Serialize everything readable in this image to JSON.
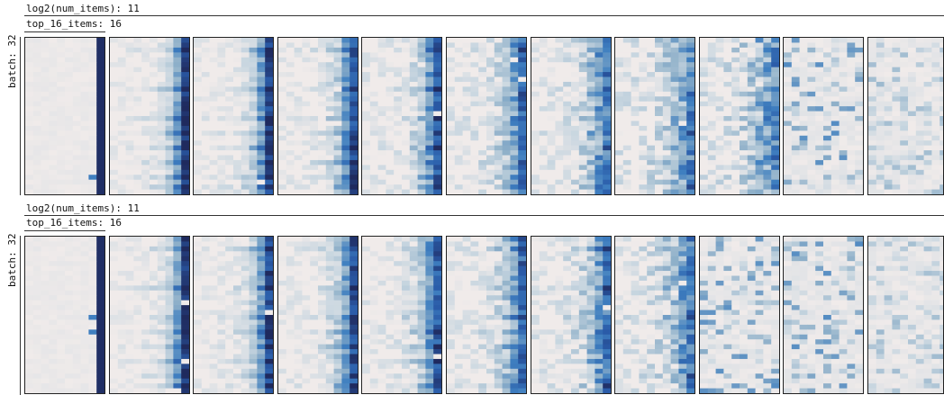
{
  "sections": [
    {
      "group_label": "log2(num_items): 11",
      "sub_label": "top_16_items: 16",
      "row_label": "batch: 32"
    },
    {
      "group_label": "log2(num_items): 11",
      "sub_label": "top_16_items: 16",
      "row_label": "batch: 32"
    }
  ],
  "chart_data": {
    "type": "heatmap",
    "rows_per_panel": 32,
    "cols_per_panel": 10,
    "panels_per_row": 11,
    "colormap": [
      "#f0ebea",
      "#c8d6e0",
      "#8fb0c9",
      "#3f7fc0",
      "#2a5ba8",
      "#1f2a5e"
    ],
    "legend": "none",
    "panel_diffusion_section_1": [
      0.0,
      0.12,
      0.22,
      0.32,
      0.42,
      0.52,
      0.62,
      0.72,
      0.8,
      0.88,
      0.95
    ],
    "panel_diffusion_section_2": [
      0.0,
      0.12,
      0.22,
      0.32,
      0.42,
      0.52,
      0.62,
      0.72,
      0.82,
      0.9,
      0.94
    ]
  }
}
